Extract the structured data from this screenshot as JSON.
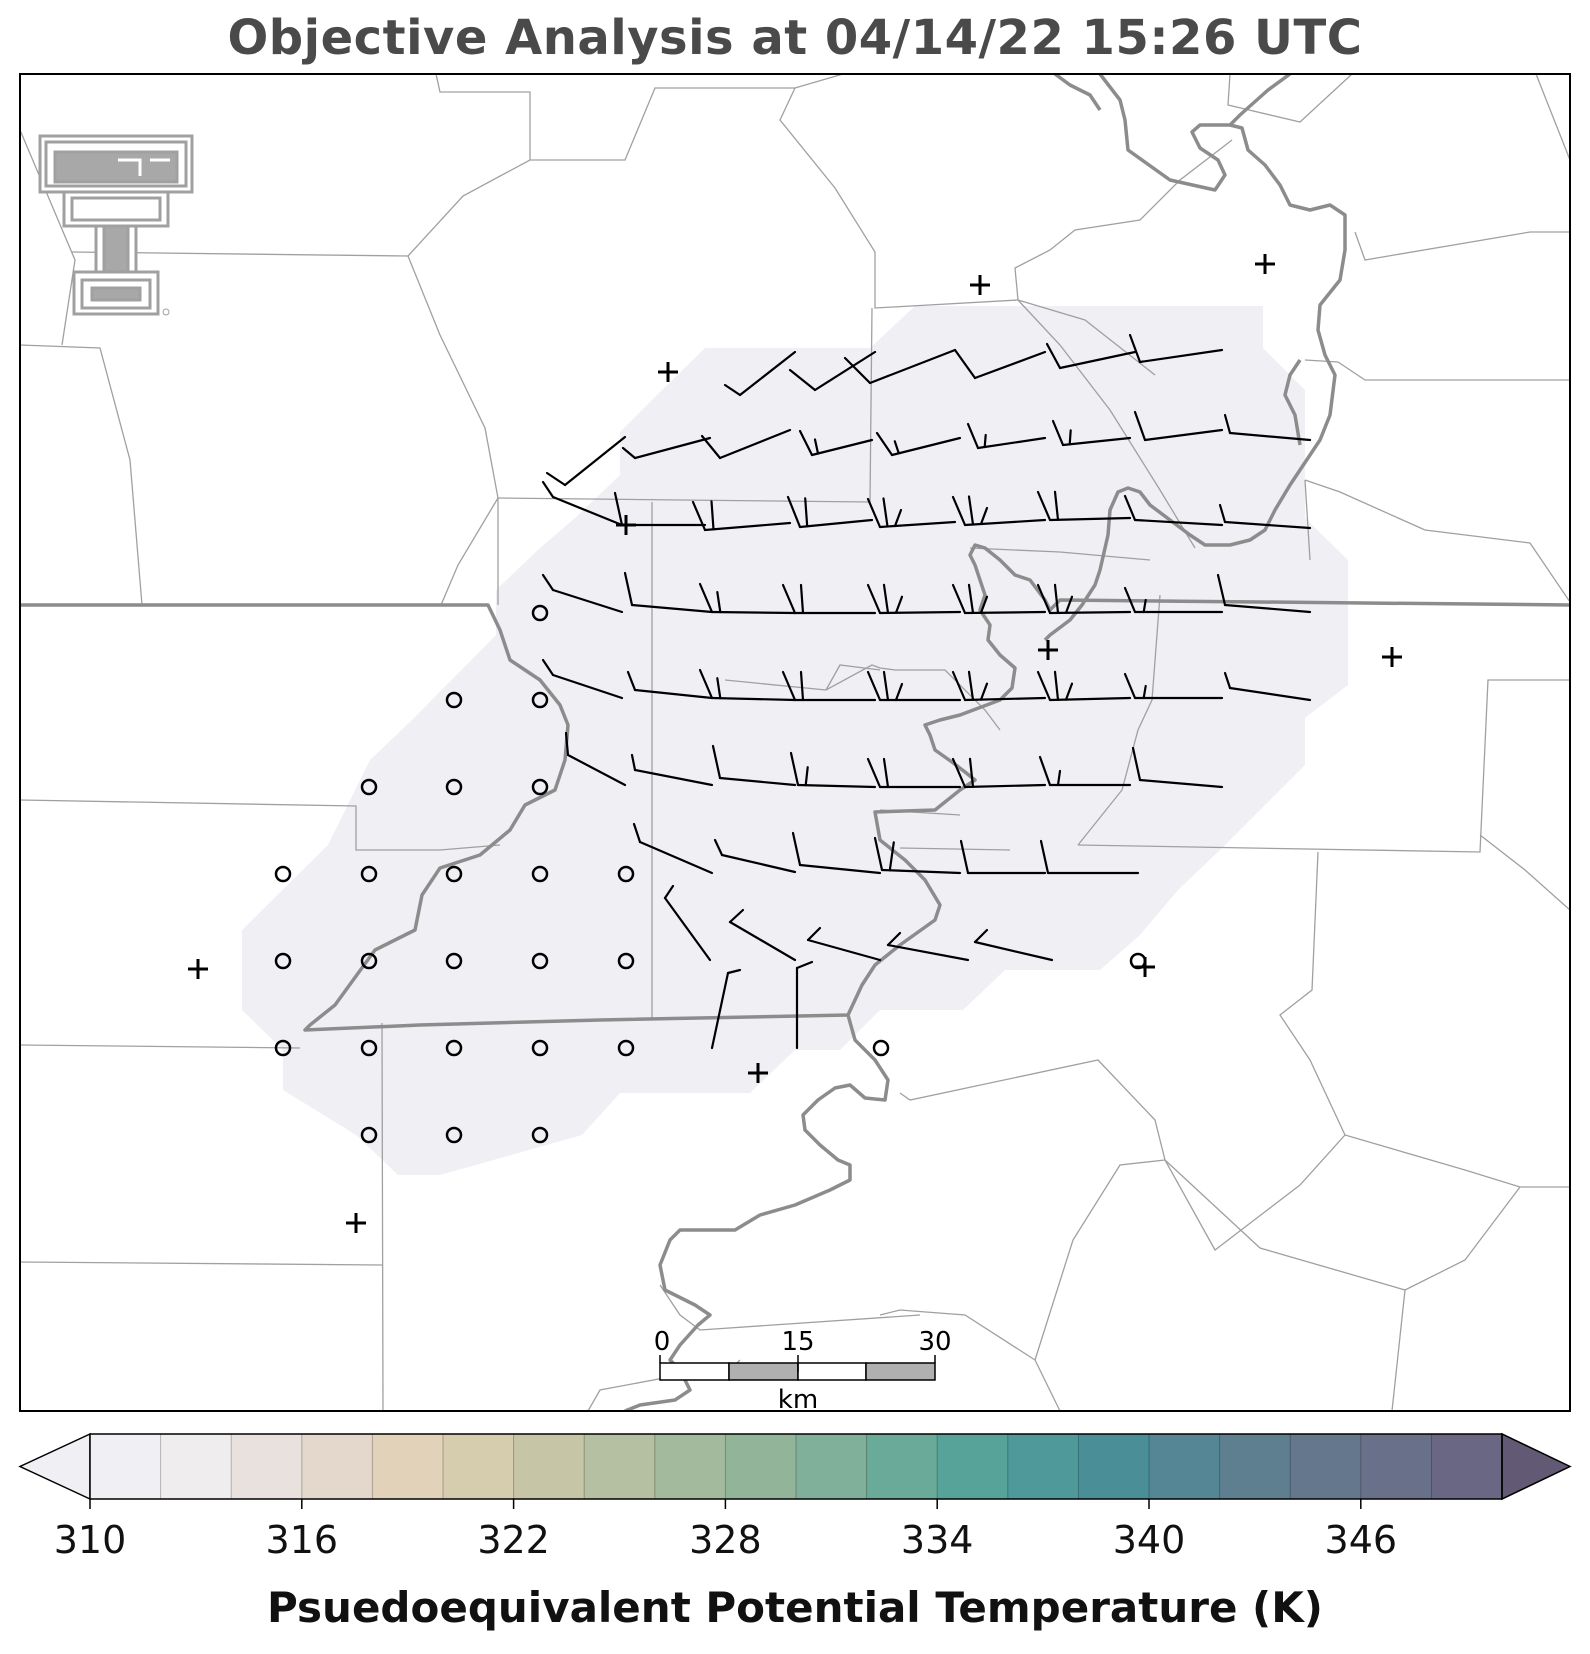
{
  "title": "Objective Analysis at 04/14/22 15:26 UTC",
  "colorbar": {
    "label": "Psuedoequivalent Potential Temperature (K)",
    "ticks": [
      "310",
      "316",
      "322",
      "328",
      "334",
      "340",
      "346"
    ],
    "tick_values": [
      310,
      316,
      322,
      328,
      334,
      340,
      346
    ],
    "range": [
      310,
      350
    ],
    "step": 2,
    "extend": "both",
    "colors": [
      "#f0eff4",
      "#efedee",
      "#e8e1de",
      "#e4d8cc",
      "#e1d2b9",
      "#d6cdae",
      "#c6c5a6",
      "#b5c0a2",
      "#a3ba9c",
      "#92b59a",
      "#80b09a",
      "#6aaa98",
      "#58a399",
      "#4f999a",
      "#4a8f98",
      "#548695",
      "#5e7f90",
      "#64778c",
      "#69708a",
      "#6a6785",
      "#625a74"
    ]
  },
  "scale_bar": {
    "labels": [
      "0",
      "15",
      "30"
    ],
    "unit": "km"
  },
  "map": {
    "analysis_fill_color": "#f0eff4",
    "border_color": "#8c8c8c",
    "county_color": "#a0a0a0",
    "station_symbols": "plus = station location; circle = calm wind"
  },
  "logo": {
    "name": "Texas Tech Double T",
    "color": "#a0a0a0"
  }
}
